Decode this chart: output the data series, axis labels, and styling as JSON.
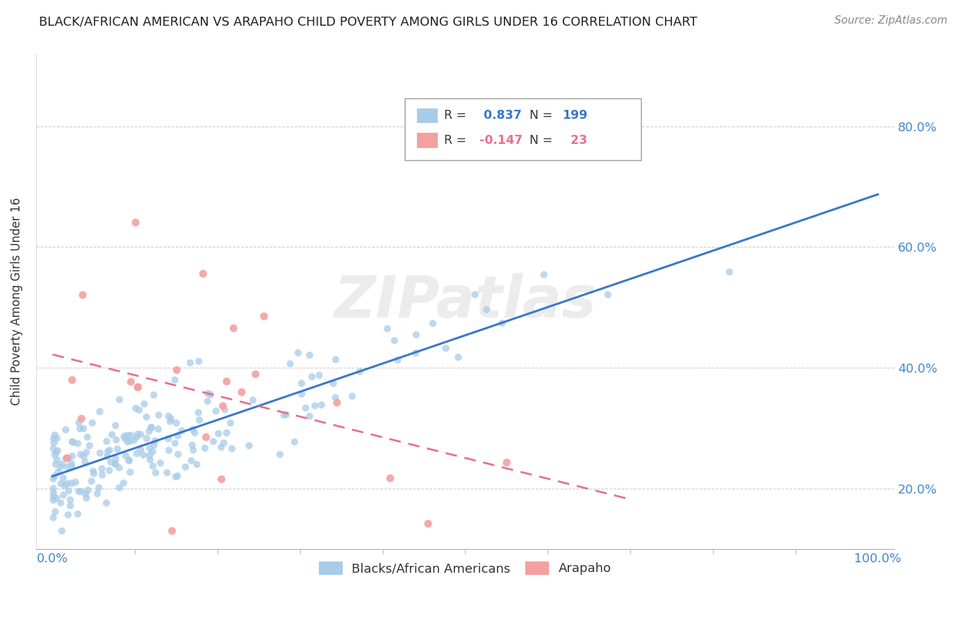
{
  "title": "BLACK/AFRICAN AMERICAN VS ARAPAHO CHILD POVERTY AMONG GIRLS UNDER 16 CORRELATION CHART",
  "source": "Source: ZipAtlas.com",
  "ylabel": "Child Poverty Among Girls Under 16",
  "xlabel": "",
  "xlim": [
    -0.02,
    1.02
  ],
  "ylim": [
    0.1,
    0.92
  ],
  "yticks": [
    0.2,
    0.4,
    0.6,
    0.8
  ],
  "ytick_labels": [
    "20.0%",
    "40.0%",
    "60.0%",
    "80.0%"
  ],
  "xticks": [
    0.0,
    1.0
  ],
  "xtick_labels": [
    "0.0%",
    "100.0%"
  ],
  "blue_color": "#a8cce8",
  "pink_color": "#f4a0a0",
  "blue_R": 0.837,
  "blue_N": 199,
  "pink_R": -0.147,
  "pink_N": 23,
  "blue_line_color": "#3a78c9",
  "pink_line_color": "#e87090",
  "legend_label_blue": "Blacks/African Americans",
  "legend_label_pink": "Arapaho",
  "watermark": "ZIPatlas",
  "background_color": "#ffffff",
  "grid_color": "#cccccc"
}
